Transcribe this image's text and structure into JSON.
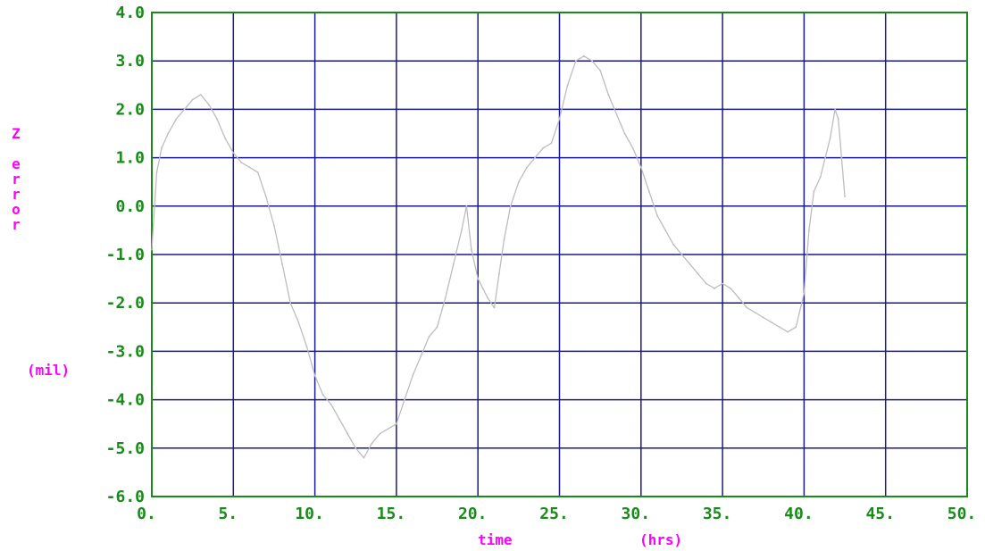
{
  "chart_data": {
    "type": "line",
    "title": "",
    "ylabel_chars": [
      "Z",
      "",
      "e",
      "r",
      "r",
      "o",
      "r"
    ],
    "yunit": "(mil)",
    "xlabel": "time",
    "xunit": "(hrs)",
    "xlim": [
      0,
      50
    ],
    "ylim": [
      -6,
      4
    ],
    "xticks": [
      0,
      5,
      10,
      15,
      20,
      25,
      30,
      35,
      40,
      45,
      50
    ],
    "yticks": [
      -6,
      -5,
      -4,
      -3,
      -2,
      -1,
      0,
      1,
      2,
      3,
      4
    ],
    "xtick_labels": [
      "0.",
      "5.",
      "10.",
      "15.",
      "20.",
      "25.",
      "30.",
      "35.",
      "40.",
      "45.",
      "50."
    ],
    "ytick_labels": [
      "-6.0",
      "-5.0",
      "-4.0",
      "-3.0",
      "-2.0",
      "-1.0",
      "0.0",
      "1.0",
      "2.0",
      "3.0",
      "4.0"
    ],
    "grid": true,
    "colors": {
      "frame": "#1a8a1a",
      "grid": "#1a1a8a",
      "tick_labels": "#1a8a1a",
      "axis_labels": "#ff00ff",
      "series": "#bdbdbd"
    },
    "series": [
      {
        "x": [
          0.0,
          0.3,
          0.6,
          1.0,
          1.5,
          2.0,
          2.5,
          3.0,
          3.5,
          4.0,
          4.5,
          5.0,
          5.5,
          6.0,
          6.5,
          7.0,
          7.5,
          8.0,
          8.5,
          9.0,
          9.5,
          10.0,
          10.5,
          11.0,
          11.5,
          12.0,
          12.5,
          13.0,
          13.5,
          14.0,
          14.5,
          15.0,
          15.5,
          16.0,
          16.5,
          17.0,
          17.5,
          18.0,
          18.5,
          19.0,
          19.3,
          19.6,
          20.0,
          20.3,
          20.6,
          21.0,
          21.3,
          21.6,
          22.0,
          22.5,
          23.0,
          23.5,
          24.0,
          24.5,
          25.0,
          25.5,
          26.0,
          26.5,
          27.0,
          27.5,
          28.0,
          28.5,
          29.0,
          29.5,
          30.0,
          30.5,
          31.0,
          31.5,
          32.0,
          32.5,
          33.0,
          33.5,
          34.0,
          34.5,
          35.0,
          35.5,
          36.0,
          36.5,
          37.0,
          37.5,
          38.0,
          38.5,
          39.0,
          39.5,
          40.0,
          40.3,
          40.6,
          41.0,
          41.3,
          41.6,
          41.9,
          42.1,
          42.3,
          42.5
        ],
        "y": [
          -0.9,
          0.7,
          1.2,
          1.5,
          1.8,
          2.0,
          2.2,
          2.3,
          2.1,
          1.8,
          1.4,
          1.1,
          0.9,
          0.8,
          0.7,
          0.2,
          -0.4,
          -1.2,
          -2.0,
          -2.4,
          -2.9,
          -3.5,
          -3.9,
          -4.1,
          -4.4,
          -4.7,
          -5.0,
          -5.2,
          -4.9,
          -4.7,
          -4.6,
          -4.5,
          -4.0,
          -3.5,
          -3.1,
          -2.7,
          -2.5,
          -1.9,
          -1.2,
          -0.5,
          0.0,
          -0.9,
          -1.5,
          -1.7,
          -1.9,
          -2.1,
          -1.4,
          -0.7,
          0.0,
          0.5,
          0.8,
          1.0,
          1.2,
          1.3,
          1.8,
          2.5,
          3.0,
          3.1,
          3.0,
          2.8,
          2.3,
          1.9,
          1.5,
          1.2,
          0.8,
          0.3,
          -0.2,
          -0.5,
          -0.8,
          -1.0,
          -1.2,
          -1.4,
          -1.6,
          -1.7,
          -1.6,
          -1.7,
          -1.9,
          -2.1,
          -2.2,
          -2.3,
          -2.4,
          -2.5,
          -2.6,
          -2.5,
          -1.8,
          -0.5,
          0.3,
          0.6,
          1.0,
          1.4,
          2.0,
          1.8,
          1.0,
          0.2
        ]
      }
    ]
  }
}
